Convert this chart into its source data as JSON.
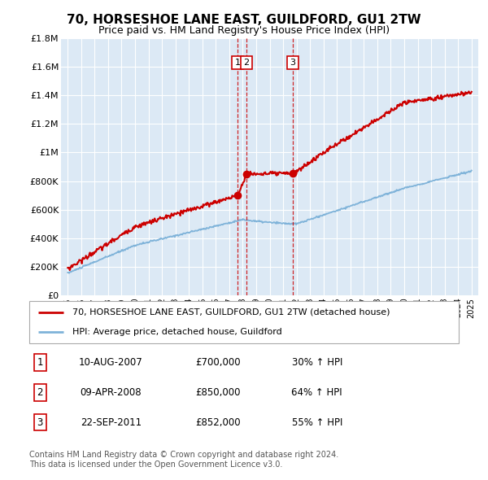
{
  "title": "70, HORSESHOE LANE EAST, GUILDFORD, GU1 2TW",
  "subtitle": "Price paid vs. HM Land Registry's House Price Index (HPI)",
  "title_fontsize": 11,
  "subtitle_fontsize": 9,
  "plot_bg_color": "#dce9f5",
  "fig_bg_color": "#ffffff",
  "grid_color": "#ffffff",
  "red_line_color": "#cc0000",
  "blue_line_color": "#7fb3d9",
  "ylim": [
    0,
    1800000
  ],
  "yticks": [
    0,
    200000,
    400000,
    600000,
    800000,
    1000000,
    1200000,
    1400000,
    1600000,
    1800000
  ],
  "ytick_labels": [
    "£0",
    "£200K",
    "£400K",
    "£600K",
    "£800K",
    "£1M",
    "£1.2M",
    "£1.4M",
    "£1.6M",
    "£1.8M"
  ],
  "xlim_start": 1994.5,
  "xlim_end": 2025.5,
  "transactions": [
    {
      "num": 1,
      "date": "10-AUG-2007",
      "year": 2007.61,
      "price": 700000,
      "hpi_pct": "30%"
    },
    {
      "num": 2,
      "date": "09-APR-2008",
      "year": 2008.27,
      "price": 850000,
      "hpi_pct": "64%"
    },
    {
      "num": 3,
      "date": "22-SEP-2011",
      "year": 2011.72,
      "price": 852000,
      "hpi_pct": "55%"
    }
  ],
  "legend_red_label": "70, HORSESHOE LANE EAST, GUILDFORD, GU1 2TW (detached house)",
  "legend_blue_label": "HPI: Average price, detached house, Guildford",
  "footer": "Contains HM Land Registry data © Crown copyright and database right 2024.\nThis data is licensed under the Open Government Licence v3.0."
}
